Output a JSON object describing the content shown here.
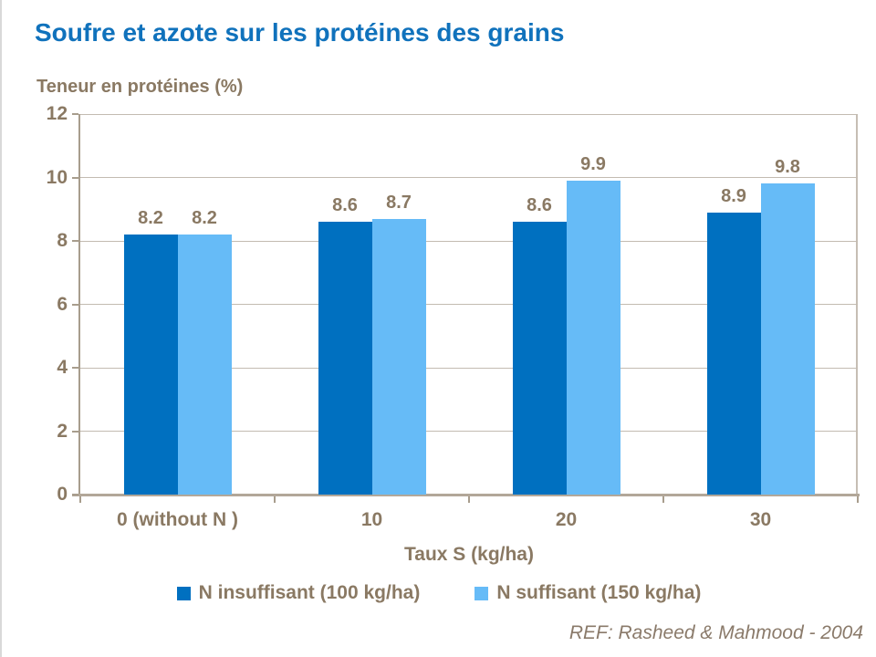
{
  "header": {
    "title": "Soufre et azote sur les protéines des grains"
  },
  "footer": {
    "ref": "REF: Rasheed & Mahmood - 2004"
  },
  "chart_data": {
    "type": "bar",
    "title": "Soufre et azote sur les protéines des grains",
    "y_axis_title": "Teneur en protéines (%)",
    "x_axis_title": "Taux S (kg/ha)",
    "categories": [
      "0 (without N )",
      "10",
      "20",
      "30"
    ],
    "series": [
      {
        "name": "N insuffisant (100 kg/ha)",
        "color": "#0070C0",
        "values": [
          8.2,
          8.6,
          8.6,
          8.9
        ]
      },
      {
        "name": "N suffisant (150 kg/ha)",
        "color": "#66BBF7",
        "values": [
          8.2,
          8.7,
          9.9,
          9.8
        ]
      }
    ],
    "ylim": [
      0,
      12
    ],
    "y_tick_step": 2,
    "y_tick_labels": [
      "0",
      "2",
      "4",
      "6",
      "8",
      "10",
      "12"
    ],
    "grid": true,
    "legend_position": "bottom",
    "colors": {
      "title_text": "#1072BC",
      "axis_text": "#8A7963",
      "gridline": "#C3BBB1",
      "axis_line": "#A89D8D",
      "footer_text": "#8A7A6A"
    }
  }
}
